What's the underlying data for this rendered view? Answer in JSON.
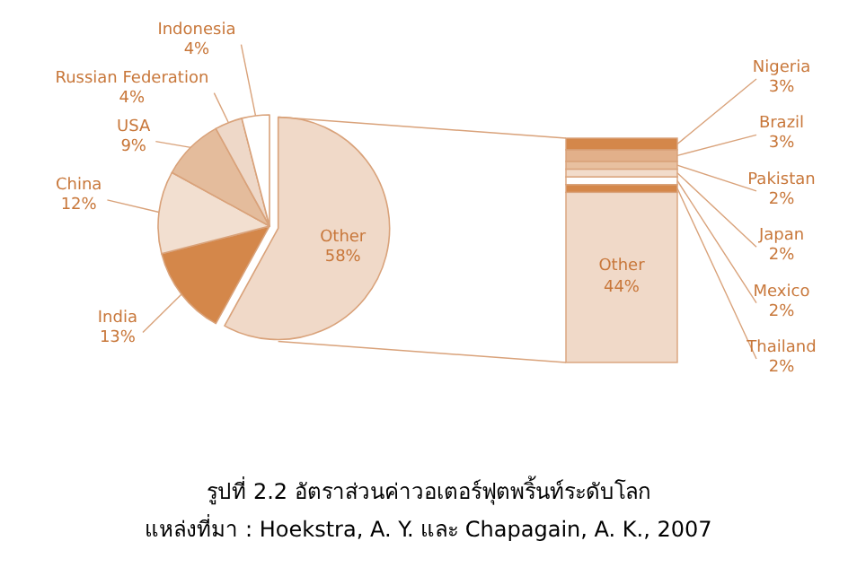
{
  "chart_data": [
    {
      "type": "pie",
      "title": "รูปที่ 2.2 อัตราส่วนค่าวอเตอร์ฟุตพริ้นท์ระดับโลก",
      "annotations": [
        "แหล่งที่มา : Hoekstra, A. Y. และ Chapagain, A. K., 2007"
      ],
      "categories": [
        "Other",
        "India",
        "China",
        "USA",
        "Russian Federation",
        "Indonesia"
      ],
      "values": [
        58,
        13,
        12,
        9,
        4,
        4
      ],
      "value_labels": [
        "58%",
        "13%",
        "12%",
        "9%",
        "4%",
        "4%"
      ],
      "colors": [
        "#f0d9c8",
        "#d4874a",
        "#f2dfd0",
        "#e4bc9c",
        "#eed8c8",
        "#ffffff"
      ]
    },
    {
      "type": "bar",
      "stacked": true,
      "categories": [
        null
      ],
      "series": [
        {
          "name": "Other",
          "color": "#f0d9c8",
          "values": [
            44
          ],
          "value_labels": [
            "44%"
          ]
        },
        {
          "name": "Thailand",
          "color": "#d4874a",
          "values": [
            2
          ],
          "value_labels": [
            "2%"
          ]
        },
        {
          "name": "Mexico",
          "color": "#ffffff",
          "values": [
            2
          ],
          "value_labels": [
            "2%"
          ]
        },
        {
          "name": "Japan",
          "color": "#f2dccb",
          "values": [
            2
          ],
          "value_labels": [
            "2%"
          ]
        },
        {
          "name": "Pakistan",
          "color": "#e8c0a0",
          "values": [
            2
          ],
          "value_labels": [
            "2%"
          ]
        },
        {
          "name": "Brazil",
          "color": "#e2b08a",
          "values": [
            3
          ],
          "value_labels": [
            "3%"
          ]
        },
        {
          "name": "Nigeria",
          "color": "#d4874a",
          "values": [
            3
          ],
          "value_labels": [
            "3%"
          ]
        }
      ]
    }
  ]
}
